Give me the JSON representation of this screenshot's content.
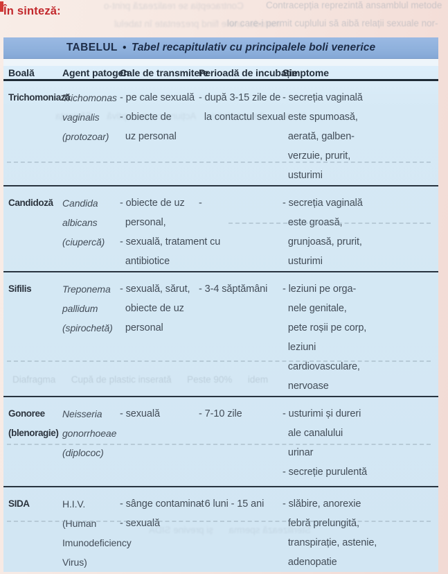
{
  "page": {
    "lead_label": "În sinteză:"
  },
  "table": {
    "title_label": "TABELUL",
    "title_bullet": "●",
    "title_text": "Tabel recapitulativ cu principalele boli venerice",
    "columns": [
      "Boală",
      "Agent patogen",
      "Cale de transmitere",
      "Perioadă de incubație",
      "Simptome"
    ],
    "rows": [
      {
        "disease": "Trichomoniază",
        "agent": "Trichomonas\nvaginalis\n(protozoar)",
        "transmission": "- pe cale sexuală\n- obiecte de\n  uz personal",
        "incubation": "- după 3-15 zile de\n  la contactul sexual",
        "symptoms": "- secreția vaginală\n  este spumoasă,\n  aerată, galben-\n  verzuie, prurit,\n  usturimi"
      },
      {
        "disease": "Candidoză",
        "agent": "Candida\nalbicans\n(ciupercă)",
        "transmission": "- obiecte de uz\n  personal,\n- sexuală, tratament cu\n  antibiotice",
        "incubation": "-",
        "symptoms": "- secreția vaginală\n  este groasă,\n  grunjoasă, prurit,\n  usturimi"
      },
      {
        "disease": "Sifilis",
        "agent": "Treponema\npallidum\n(spirochetă)",
        "transmission": "- sexuală, sărut,\n  obiecte de uz\n  personal",
        "incubation": "- 3-4 săptămâni",
        "symptoms": "- leziuni pe orga-\n  nele genitale,\n  pete roșii pe corp,\n  leziuni\n  cardiovasculare,\n  nervoase"
      },
      {
        "disease": "Gonoree\n(blenoragie)",
        "agent": "Neisseria\ngonorrhoeae\n(diplococ)",
        "transmission": "- sexuală",
        "incubation": "- 7-10 zile",
        "symptoms": "- usturimi și dureri\n  ale canalului\n  urinar\n- secreție purulentă"
      },
      {
        "disease": "SIDA",
        "agent": "H.I.V.\n(Human\nImunodeficiency\nVirus)",
        "transmission": "- sânge contaminat\n- sexuală",
        "incubation": "- 6 luni - 15 ani",
        "symptoms": "- slăbire, anorexie\n  febră prelungită,\n  transpirație, astenie,\n  adenopatie"
      }
    ]
  },
  "bleedthrough": {
    "mirror_top_1": "Contracepția se realizează print-o",
    "mirror_top_2": "metode, unele fiind prezentate în tabelul",
    "right_top_1": "Contracepția reprezintă ansamblul metode",
    "right_top_2": "lor care-i permit cuplului să aibă relații sexuale nor-",
    "row_ghost_1": "Nume      Caracteristici      Acțiune contraceptivă      Eficiența",
    "row_ghost_2": "Diafragma      Cupă de plastic inserată      Peste 90%      idem",
    "row_ghost_3": "Sterilizează sperma      și previne SIDA"
  }
}
